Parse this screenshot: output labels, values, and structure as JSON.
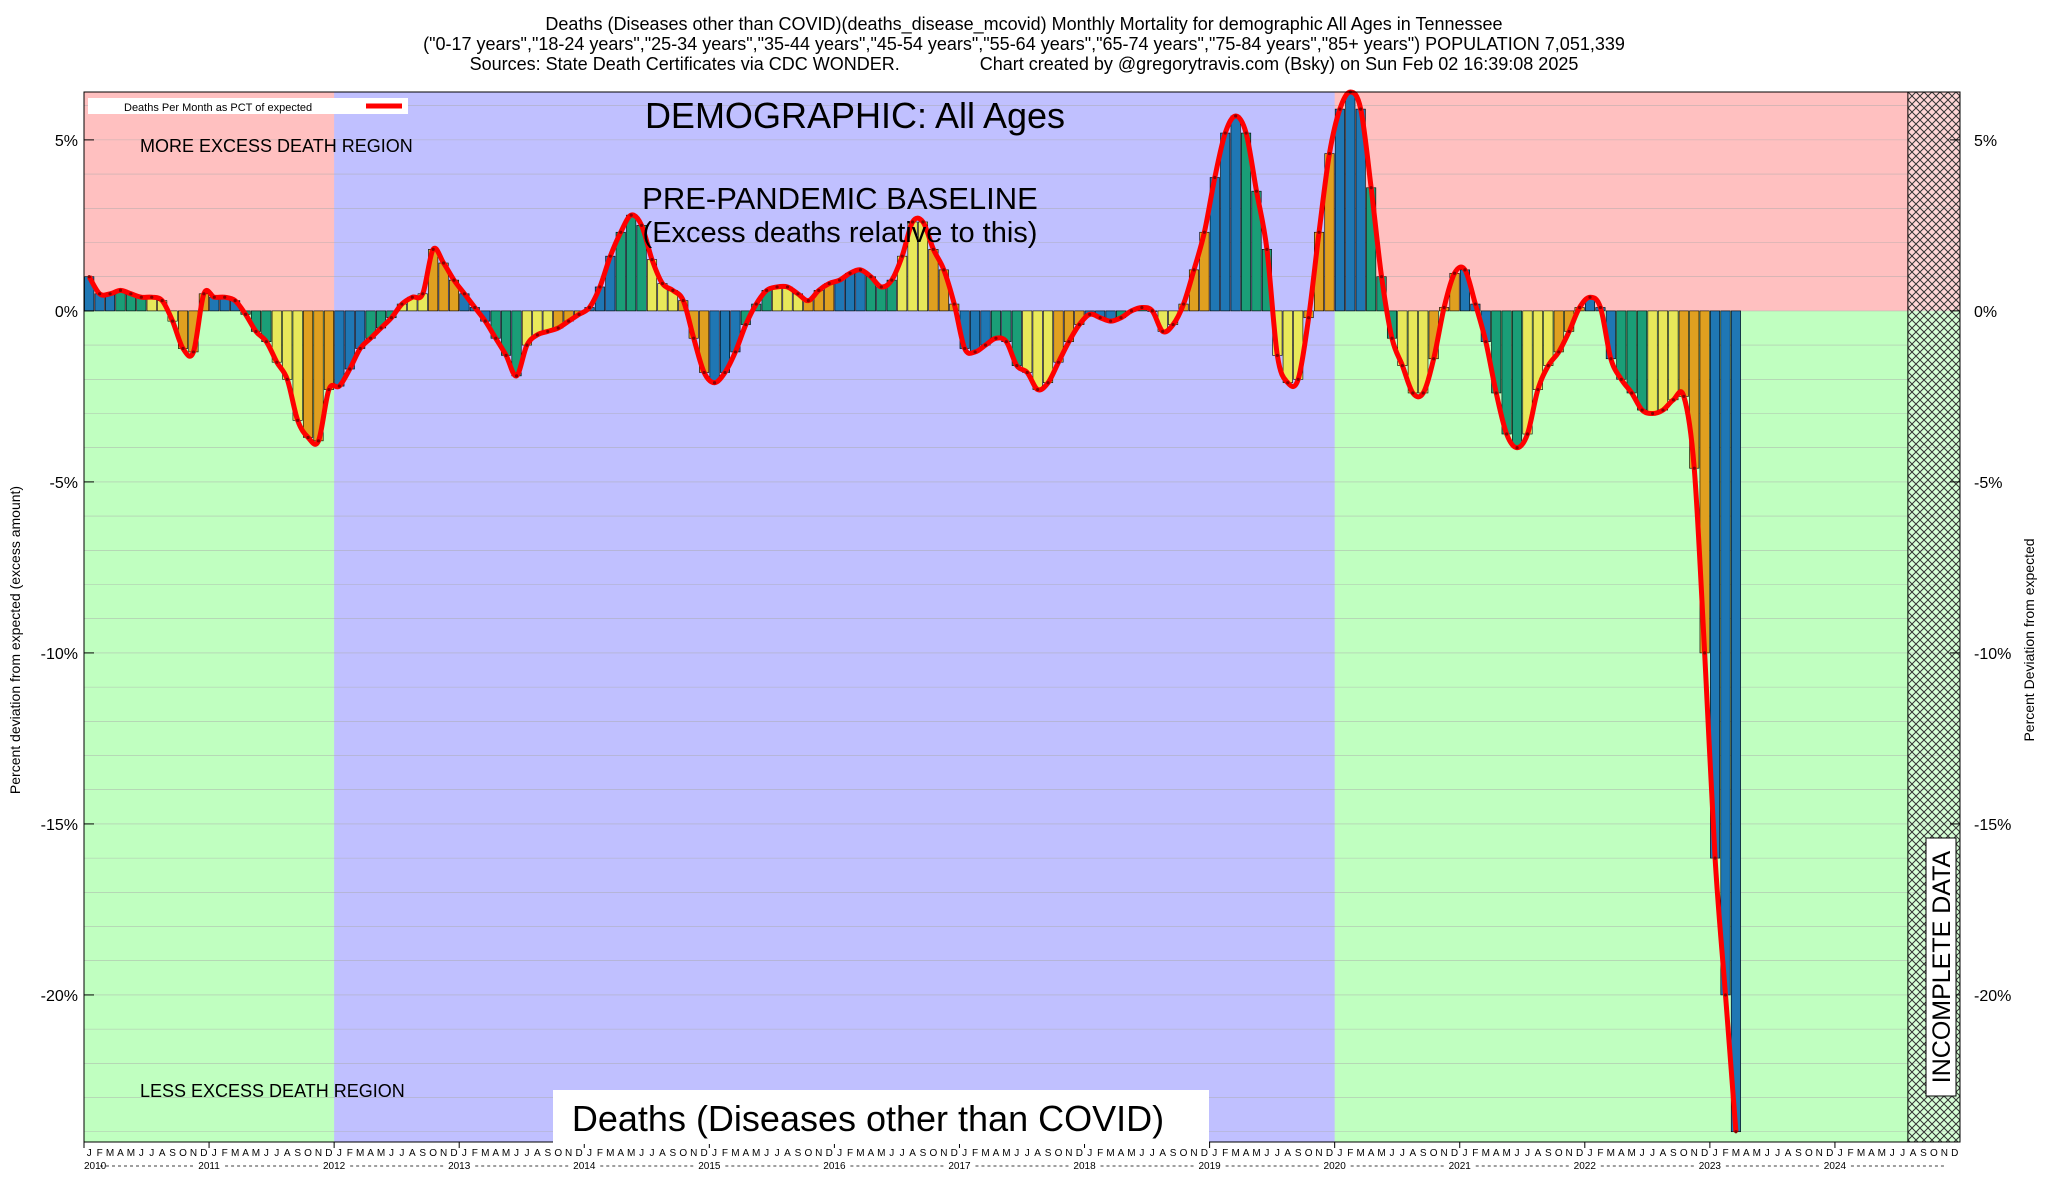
{
  "header": {
    "line1": "Deaths (Diseases other than COVID)(deaths_disease_mcovid) Monthly Mortality for demographic All Ages in Tennessee",
    "line2": "(\"0-17 years\",\"18-24 years\",\"25-34 years\",\"35-44 years\",\"45-54 years\",\"55-64 years\",\"65-74 years\",\"75-84 years\",\"85+ years\") POPULATION 7,051,339",
    "line3": "Sources: State Death Certificates via CDC WONDER.                Chart created by @gregorytravis.com (Bsky) on Sun Feb 02 16:39:08 2025"
  },
  "chart_data": {
    "type": "bar",
    "title": "Deaths (Diseases other than COVID)(deaths_disease_mcovid) Monthly Mortality for demographic All Ages in Tennessee",
    "ylabel_left": "Percent deviation from expected (excess amount)",
    "ylabel_right": "Percent Deviation from expected",
    "legend_label": "Deaths Per Month as PCT of expected",
    "legend_position": "top-left",
    "ylim": [
      -24.3,
      6.4
    ],
    "yticks": [
      5,
      0,
      -5,
      -10,
      -15,
      -20
    ],
    "ytick_labels": [
      "5%",
      "0%",
      "-5%",
      "-10%",
      "-15%",
      "-20%"
    ],
    "x_start": "2010-01",
    "x_end": "2024-12",
    "years": [
      "2010",
      "2011",
      "2012",
      "2013",
      "2014",
      "2015",
      "2016",
      "2017",
      "2018",
      "2019",
      "2020",
      "2021",
      "2022",
      "2023",
      "2024"
    ],
    "month_letters": [
      "J",
      "F",
      "M",
      "A",
      "M",
      "J",
      "J",
      "A",
      "S",
      "O",
      "N",
      "D"
    ],
    "regions": [
      {
        "label": "MORE EXCESS DEATH REGION",
        "y_from": 0,
        "y_to": 6.4,
        "color": "#ffc0c0"
      },
      {
        "label": "LESS EXCESS DEATH REGION",
        "y_from": -24.3,
        "y_to": 0,
        "color": "#c0ffc0"
      },
      {
        "label": "PRE-PANDEMIC BASELINE",
        "sublabel": "(Excess deaths relative to this)",
        "x_from": "2012-01",
        "x_to": "2019-12",
        "color": "#c0c0ff"
      },
      {
        "label": "INCOMPLETE DATA",
        "x_from": "2024-08",
        "x_to": "2024-12",
        "pattern": "crosshatch"
      }
    ],
    "annotations": {
      "demographic": "DEMOGRAPHIC: All Ages",
      "bottom_caption": "Deaths (Diseases other than COVID)"
    },
    "series": [
      {
        "name": "Deaths Per Month as PCT of expected",
        "values": [
          1.0,
          0.5,
          0.5,
          0.6,
          0.5,
          0.4,
          0.4,
          0.3,
          -0.3,
          -1.1,
          -1.2,
          0.5,
          0.4,
          0.4,
          0.3,
          -0.1,
          -0.6,
          -0.9,
          -1.5,
          -2.0,
          -3.2,
          -3.7,
          -3.8,
          -2.3,
          -2.2,
          -1.7,
          -1.1,
          -0.8,
          -0.5,
          -0.2,
          0.2,
          0.4,
          0.5,
          1.8,
          1.4,
          0.9,
          0.5,
          0.1,
          -0.3,
          -0.8,
          -1.3,
          -1.9,
          -1.0,
          -0.7,
          -0.6,
          -0.5,
          -0.3,
          -0.1,
          0.1,
          0.7,
          1.6,
          2.3,
          2.8,
          2.5,
          1.5,
          0.8,
          0.6,
          0.3,
          -0.8,
          -1.8,
          -2.1,
          -1.8,
          -1.2,
          -0.4,
          0.2,
          0.6,
          0.7,
          0.7,
          0.5,
          0.3,
          0.6,
          0.8,
          0.9,
          1.1,
          1.2,
          1.0,
          0.7,
          0.9,
          1.6,
          2.6,
          2.6,
          1.8,
          1.2,
          0.2,
          -1.1,
          -1.2,
          -1.0,
          -0.8,
          -0.9,
          -1.6,
          -1.8,
          -2.3,
          -2.1,
          -1.5,
          -0.9,
          -0.4,
          -0.1,
          -0.2,
          -0.3,
          -0.2,
          0.0,
          0.1,
          0.0,
          -0.6,
          -0.4,
          0.2,
          1.2,
          2.3,
          3.9,
          5.2,
          5.7,
          5.2,
          3.5,
          1.8,
          -1.3,
          -2.1,
          -2.0,
          -0.2,
          2.3,
          4.6,
          5.9,
          6.4,
          5.9,
          3.6,
          1.0,
          -0.8,
          -1.6,
          -2.4,
          -2.4,
          -1.4,
          0.1,
          1.1,
          1.2,
          0.2,
          -0.9,
          -2.4,
          -3.6,
          -4.0,
          -3.6,
          -2.3,
          -1.6,
          -1.2,
          -0.6,
          0.1,
          0.4,
          0.1,
          -1.4,
          -2.0,
          -2.4,
          -2.9,
          -3.0,
          -2.9,
          -2.6,
          -2.5,
          -4.6,
          -10.0,
          -16.0,
          -20.0,
          -24.0
        ]
      }
    ]
  }
}
